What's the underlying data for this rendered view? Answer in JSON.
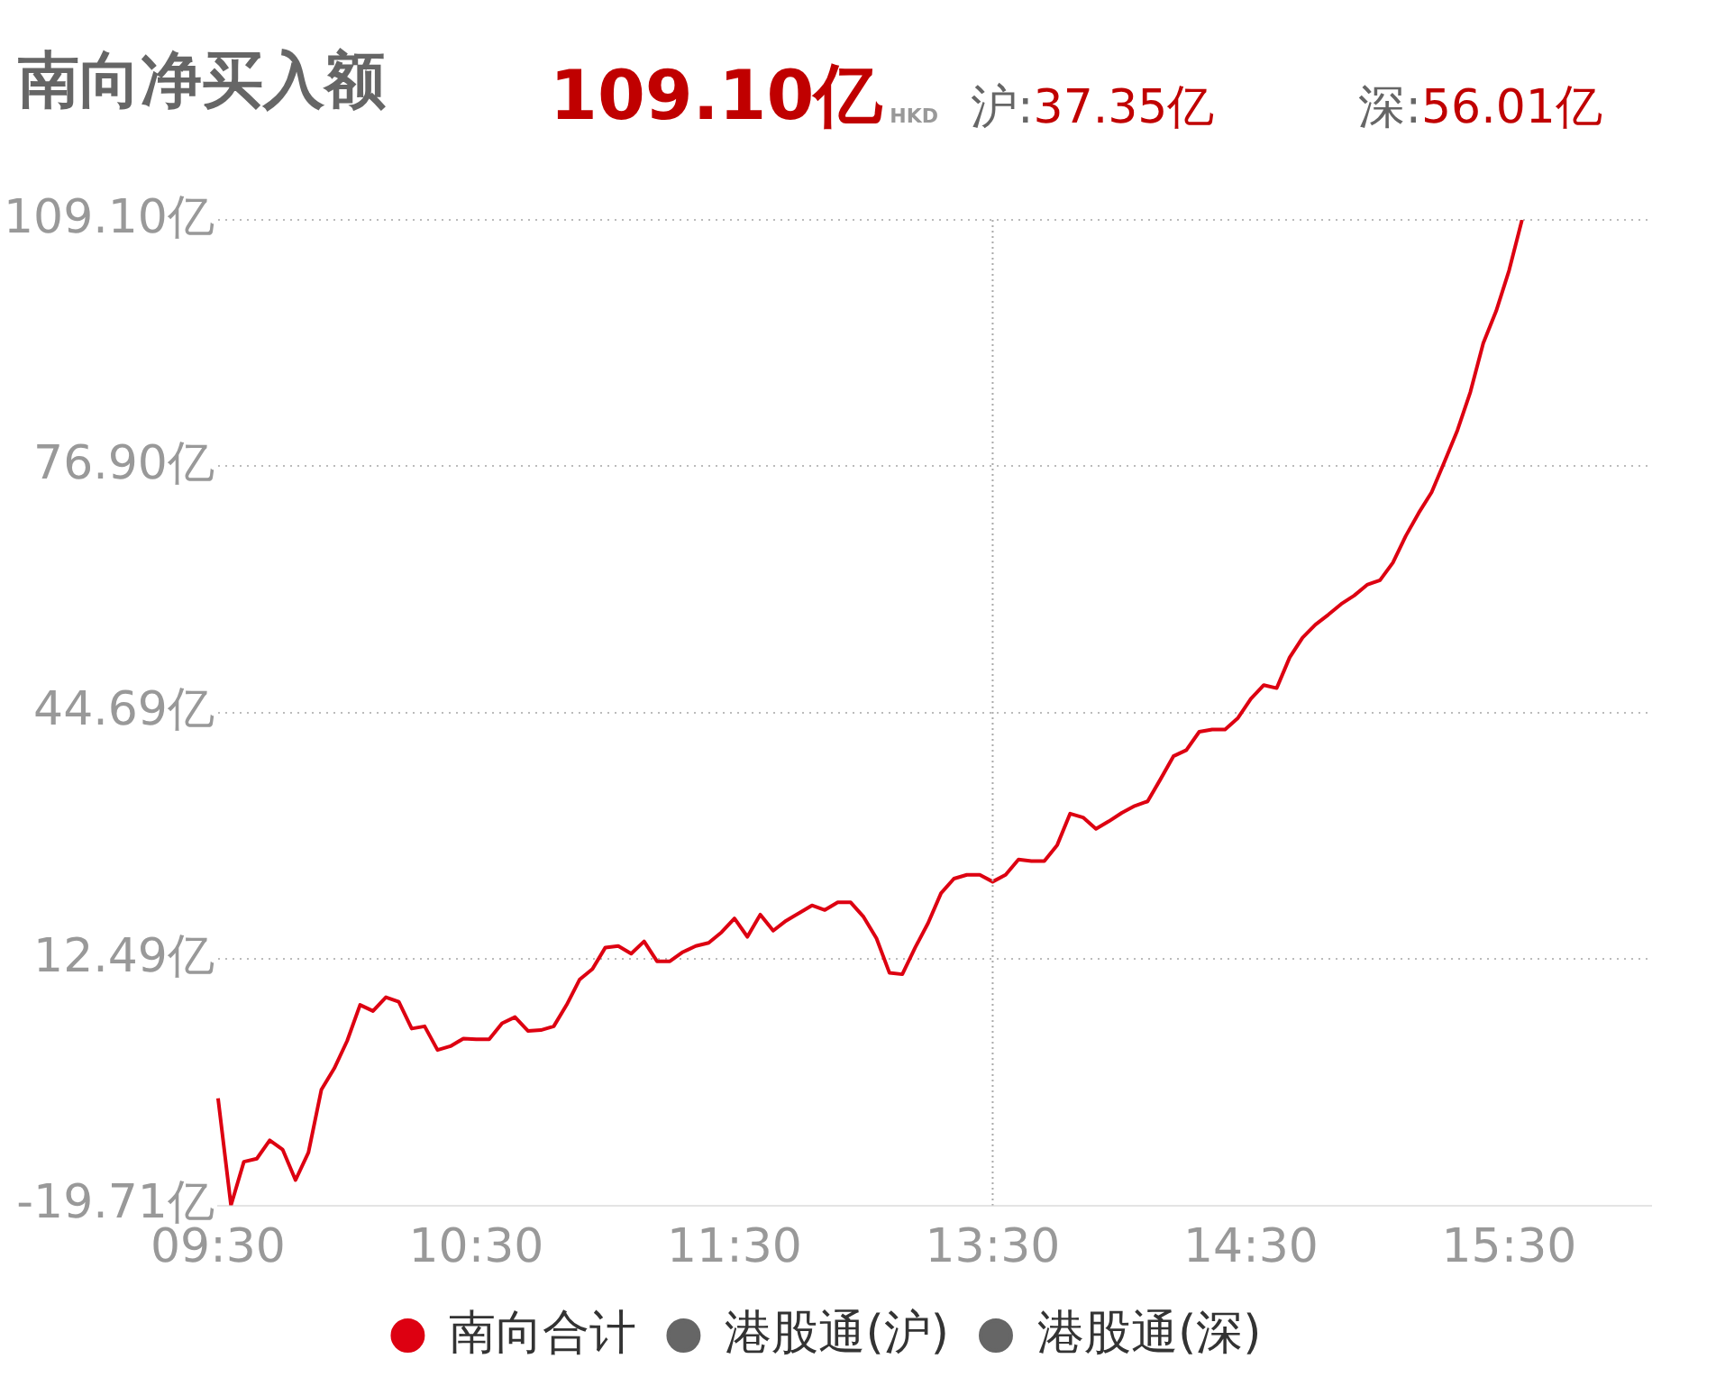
{
  "chart_data": {
    "type": "line",
    "title": "南向净买入额",
    "annotations": [
      "109.10亿",
      "HKD",
      "沪:37.35亿",
      "深:56.01亿"
    ],
    "categories": [
      "09:30",
      null,
      null,
      null,
      null,
      null,
      null,
      null,
      null,
      null,
      null,
      null,
      null,
      null,
      null,
      null,
      null,
      null,
      null,
      null,
      "10:30",
      null,
      null,
      null,
      null,
      null,
      null,
      null,
      null,
      null,
      null,
      null,
      null,
      null,
      null,
      null,
      null,
      null,
      null,
      null,
      "11:30",
      null,
      null,
      null,
      null,
      null,
      null,
      null,
      null,
      null,
      null,
      null,
      null,
      null,
      null,
      null,
      null,
      null,
      null,
      null,
      "13:30",
      null,
      null,
      null,
      null,
      null,
      null,
      null,
      null,
      null,
      null,
      null,
      null,
      null,
      null,
      null,
      null,
      null,
      null,
      null,
      "14:30",
      null,
      null,
      null,
      null,
      null,
      null,
      null,
      null,
      null,
      null,
      null,
      null,
      null,
      null,
      null,
      null,
      null,
      null,
      null,
      "15:30",
      null,
      null,
      null,
      null,
      null,
      null,
      null,
      null,
      null,
      null,
      null
    ],
    "series": [
      {
        "name": "南向合计",
        "color": "#dd0011",
        "values": [
          -5.7,
          -19.7,
          -14,
          -13.6,
          -11.2,
          -12.4,
          -16.4,
          -12.8,
          -4.6,
          -1.8,
          1.8,
          6.5,
          5.7,
          7.5,
          6.9,
          3.4,
          3.7,
          0.6,
          1.1,
          2.1,
          2.0,
          2.0,
          4.1,
          4.9,
          3.1,
          3.2,
          3.7,
          6.5,
          9.8,
          11.2,
          14.0,
          14.2,
          13.2,
          14.8,
          12.2,
          12.2,
          13.4,
          14.2,
          14.6,
          16,
          17.8,
          15.4,
          18.3,
          16.2,
          17.5,
          18.5,
          19.5,
          18.9,
          19.9,
          19.9,
          18.0,
          15.2,
          10.7,
          10.5,
          14,
          17.2,
          21.1,
          23.0,
          23.5,
          23.5,
          22.6,
          23.5,
          25.5,
          25.3,
          25.3,
          27.4,
          31.5,
          31.0,
          29.5,
          30.5,
          31.6,
          32.5,
          33.1,
          36,
          39.0,
          39.8,
          42.2,
          42.5,
          42.5,
          44.0,
          46.5,
          48.3,
          47.9,
          51.9,
          54.5,
          56.2,
          57.5,
          58.9,
          60.0,
          61.4,
          62.0,
          64.3,
          67.8,
          70.8,
          73.5,
          77.5,
          81.6,
          86.6,
          93.0,
          97.2,
          102.5,
          109.1,
          null,
          null,
          null,
          null,
          null,
          null,
          null,
          null,
          null,
          null
        ]
      },
      {
        "name": "港股通(沪)",
        "color": "#666666",
        "values": [
          null,
          null,
          null,
          null,
          null,
          null,
          null,
          null,
          null,
          null,
          null,
          null,
          null,
          null,
          null,
          null,
          null,
          null,
          null,
          null,
          null,
          null,
          null,
          null,
          null,
          null,
          null,
          null,
          null,
          null,
          null,
          null,
          null,
          null,
          null,
          null,
          null,
          null,
          null,
          null,
          null,
          null,
          null,
          null,
          null,
          null,
          null,
          null,
          null,
          null,
          null,
          null,
          null,
          null,
          null,
          null,
          null,
          null,
          null,
          null,
          null,
          null,
          null,
          null,
          null,
          null,
          null,
          null,
          null,
          null,
          null,
          null,
          null,
          null,
          null,
          null,
          null,
          null,
          null,
          null,
          null,
          null,
          null,
          null,
          null,
          null,
          null,
          null,
          null,
          null,
          null,
          null,
          null,
          null,
          null,
          null,
          null,
          null,
          null,
          null,
          null,
          null,
          null,
          null,
          null,
          null,
          null,
          null,
          null,
          null,
          null,
          null
        ]
      },
      {
        "name": "港股通(深)",
        "color": "#666666",
        "values": [
          null,
          null,
          null,
          null,
          null,
          null,
          null,
          null,
          null,
          null,
          null,
          null,
          null,
          null,
          null,
          null,
          null,
          null,
          null,
          null,
          null,
          null,
          null,
          null,
          null,
          null,
          null,
          null,
          null,
          null,
          null,
          null,
          null,
          null,
          null,
          null,
          null,
          null,
          null,
          null,
          null,
          null,
          null,
          null,
          null,
          null,
          null,
          null,
          null,
          null,
          null,
          null,
          null,
          null,
          null,
          null,
          null,
          null,
          null,
          null,
          null,
          null,
          null,
          null,
          null,
          null,
          null,
          null,
          null,
          null,
          null,
          null,
          null,
          null,
          null,
          null,
          null,
          null,
          null,
          null,
          null,
          null,
          null,
          null,
          null,
          null,
          null,
          null,
          null,
          null,
          null,
          null,
          null,
          null,
          null,
          null,
          null,
          null,
          null,
          null,
          null,
          null,
          null,
          null,
          null,
          null,
          null,
          null,
          null,
          null,
          null,
          null
        ]
      }
    ],
    "ylim": [
      -19.71,
      109.1
    ],
    "yticks": [
      {
        "value": -19.71,
        "label": "-19.71亿"
      },
      {
        "value": 12.49,
        "label": "12.49亿"
      },
      {
        "value": 44.69,
        "label": "44.69亿"
      },
      {
        "value": 76.9,
        "label": "76.90亿"
      },
      {
        "value": 109.1,
        "label": "109.10亿"
      }
    ],
    "ref_lines": [
      {
        "axis": "x",
        "value": "13:30",
        "color": "#aaaaaa",
        "line_style": "dotted"
      }
    ],
    "grid": "y",
    "legend": "bottom",
    "marker": "none"
  }
}
